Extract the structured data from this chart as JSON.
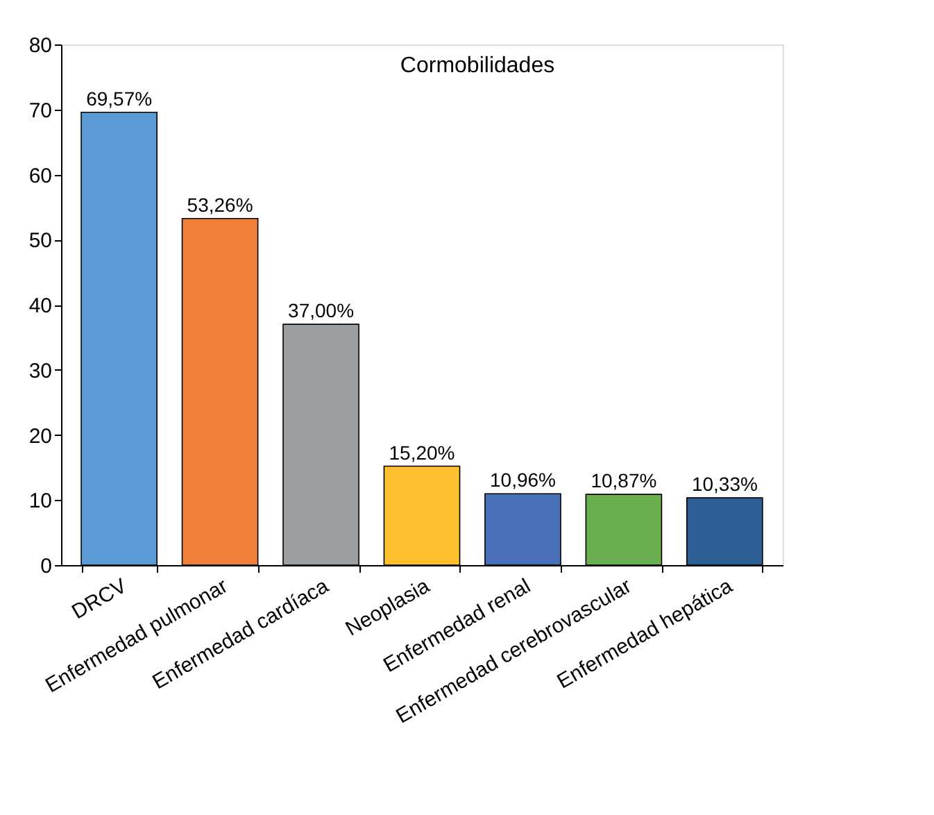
{
  "chart_data": {
    "type": "bar",
    "title": "Cormobilidades",
    "categories": [
      "DRCV",
      "Enfermedad pulmonar",
      "Enfermedad cardíaca",
      "Neoplasia",
      "Enfermedad renal",
      "Enfermedad cerebrovascular",
      "Enfermedad hepática"
    ],
    "values": [
      69.57,
      53.26,
      37.0,
      15.2,
      10.96,
      10.87,
      10.33
    ],
    "value_labels": [
      "69,57%",
      "53,26%",
      "37,00%",
      "15,20%",
      "10,96%",
      "10,87%",
      "10,33%"
    ],
    "colors": [
      "#5b9bd5",
      "#f07f3c",
      "#9c9fa2",
      "#fdbf2d",
      "#4a70b8",
      "#6aae50",
      "#2e5f94"
    ],
    "ylim": [
      0,
      80
    ],
    "yticks": [
      0,
      10,
      20,
      30,
      40,
      50,
      60,
      70,
      80
    ],
    "grid": false
  }
}
